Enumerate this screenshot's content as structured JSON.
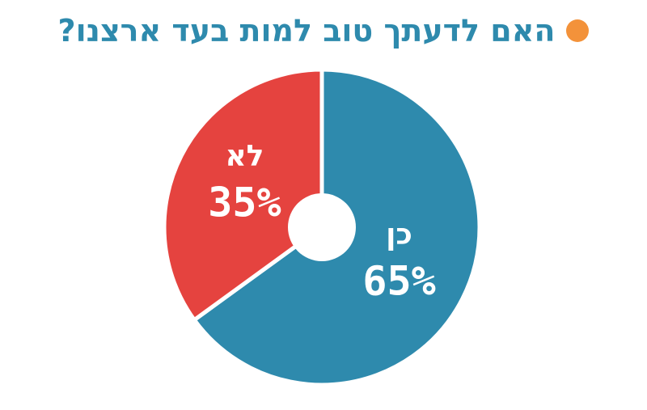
{
  "chart_data": {
    "type": "pie",
    "title": "האם לדעתך טוב למות בעד ארצנו?",
    "categories": [
      "כן",
      "לא"
    ],
    "values": [
      65,
      35
    ],
    "value_labels": [
      "65%",
      "35%"
    ],
    "colors": [
      "#2e8aad",
      "#e5433f"
    ],
    "donut": true,
    "legend": "none"
  },
  "colors": {
    "bullet": "#f3923a",
    "title": "#2e8aad"
  }
}
